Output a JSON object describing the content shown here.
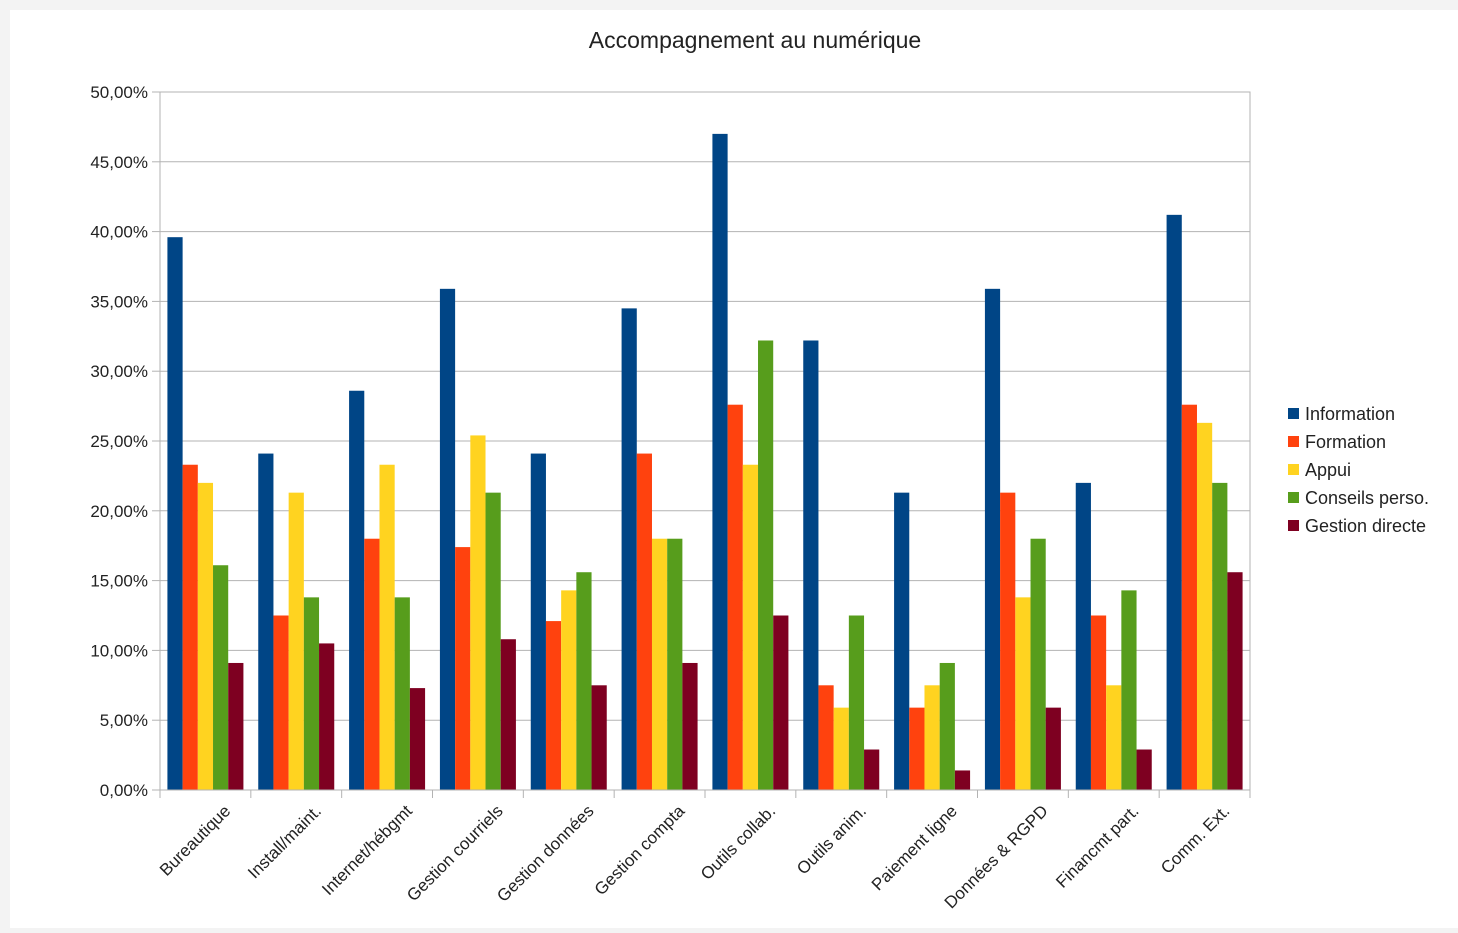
{
  "chart_data": {
    "type": "bar",
    "title": "Accompagnement au numérique",
    "xlabel": "",
    "ylabel": "",
    "ylim": [
      0,
      50
    ],
    "y_ticks": [
      "0,00%",
      "5,00%",
      "10,00%",
      "15,00%",
      "20,00%",
      "25,00%",
      "30,00%",
      "35,00%",
      "40,00%",
      "45,00%",
      "50,00%"
    ],
    "grid": true,
    "legend_position": "right",
    "categories": [
      "Bureautique",
      "Install/maint.",
      "Internet/hébgmt",
      "Gestion courriels",
      "Gestion données",
      "Gestion compta",
      "Outils collab.",
      "Outils anim.",
      "Paiement ligne",
      "Données & RGPD",
      "Financmt part.",
      "Comm. Ext."
    ],
    "series": [
      {
        "name": "Information",
        "color": "#004586",
        "values": [
          39.6,
          24.1,
          28.6,
          35.9,
          24.1,
          34.5,
          47.0,
          32.2,
          21.3,
          35.9,
          22.0,
          41.2
        ]
      },
      {
        "name": "Formation",
        "color": "#ff420e",
        "values": [
          23.3,
          12.5,
          18.0,
          17.4,
          12.1,
          24.1,
          27.6,
          7.5,
          5.9,
          21.3,
          12.5,
          27.6
        ]
      },
      {
        "name": "Appui",
        "color": "#ffd320",
        "values": [
          22.0,
          21.3,
          23.3,
          25.4,
          14.3,
          18.0,
          23.3,
          5.9,
          7.5,
          13.8,
          7.5,
          26.3
        ]
      },
      {
        "name": "Conseils perso.",
        "color": "#579d1c",
        "values": [
          16.1,
          13.8,
          13.8,
          21.3,
          15.6,
          18.0,
          32.2,
          12.5,
          9.1,
          18.0,
          14.3,
          22.0
        ]
      },
      {
        "name": "Gestion directe",
        "color": "#7e0021",
        "values": [
          9.1,
          10.5,
          7.3,
          10.8,
          7.5,
          9.1,
          12.5,
          2.9,
          1.4,
          5.9,
          2.9,
          15.6
        ]
      }
    ]
  }
}
